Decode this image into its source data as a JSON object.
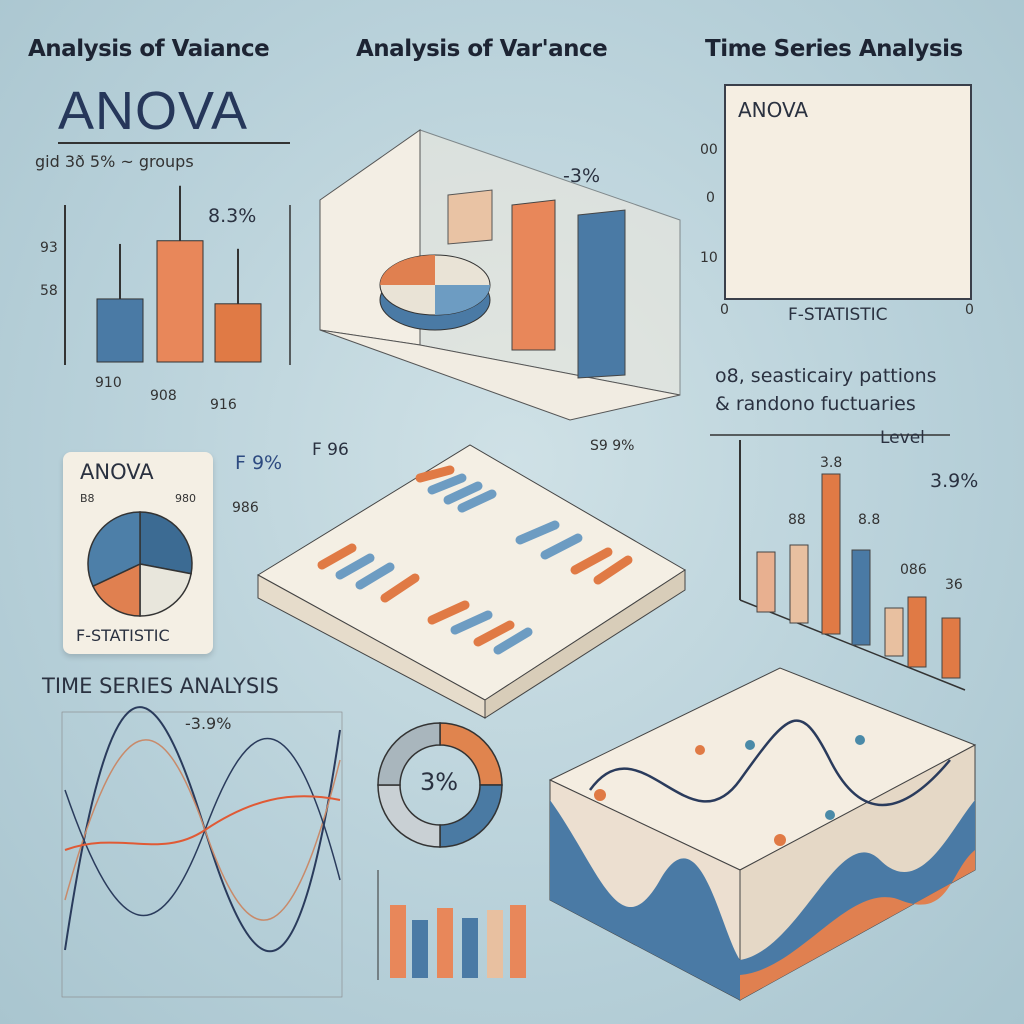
{
  "headings": {
    "left": "Analysis of Vaiance",
    "center": "Analysis of Var'ance",
    "right": "Time Series Analysis"
  },
  "anova_block": {
    "title": "ANOVA",
    "subtitle": "gid 3ð 5% ~ groups",
    "percent": "8.3%",
    "axis_labels": [
      "93",
      "58"
    ],
    "x_labels": [
      "910",
      "908",
      "916"
    ]
  },
  "center_3d": {
    "percent": "-3%"
  },
  "panel": {
    "title": "ANOVA",
    "caption": "F-STATISTIC",
    "y_labels": [
      "00",
      "0",
      "10"
    ],
    "x_labels": [
      "0",
      "0"
    ]
  },
  "seasonality": {
    "line1": "o8, seasticairy pattions",
    "line2": "& randono fuctuaries",
    "level_label": "Level",
    "percent": "3.9%",
    "value_labels": [
      "3.8",
      "88",
      "8.8",
      "086",
      "36"
    ]
  },
  "card": {
    "title": "ANOVA",
    "left_label": "B8",
    "right_label": "980",
    "caption": "F-STATISTIC",
    "slices": [
      {
        "value": 28,
        "color": "#3c6b93"
      },
      {
        "value": 22,
        "color": "#e8e6dc"
      },
      {
        "value": 18,
        "color": "#e08050"
      },
      {
        "value": 32,
        "color": "#4d7fa8"
      }
    ]
  },
  "f_labels": {
    "a": "F 9%",
    "b": "F 96",
    "c": "986",
    "d": "S9 9%"
  },
  "time_series": {
    "title": "TIME SERIES ANALYSIS",
    "percent": "-3.9%"
  },
  "donut": {
    "label": "3%",
    "segments": [
      {
        "value": 25,
        "color": "#e0844e"
      },
      {
        "value": 25,
        "color": "#4a7aa3"
      },
      {
        "value": 25,
        "color": "#c9d0d4"
      },
      {
        "value": 25,
        "color": "#a9b6bd"
      }
    ]
  },
  "chart_data": [
    {
      "type": "bar",
      "categories": [
        "910",
        "908",
        "916"
      ],
      "values": [
        65,
        125,
        60
      ],
      "colors": [
        "#4a7aa5",
        "#e8875a",
        "#e07a45"
      ]
    },
    {
      "type": "bar",
      "categories": [
        "",
        "",
        "",
        "",
        "",
        "",
        ""
      ],
      "values": [
        60,
        78,
        160,
        95,
        48,
        70,
        60
      ],
      "colors": [
        "#e8b090",
        "#e8c0a0",
        "#e07a45",
        "#4a7aa5",
        "#e8c0a0",
        "#e07a45",
        "#e07a45"
      ]
    }
  ],
  "colors": {
    "navy": "#26375a",
    "orange": "#e07a45",
    "blue": "#4a7aa5",
    "cream": "#f5eee2"
  }
}
